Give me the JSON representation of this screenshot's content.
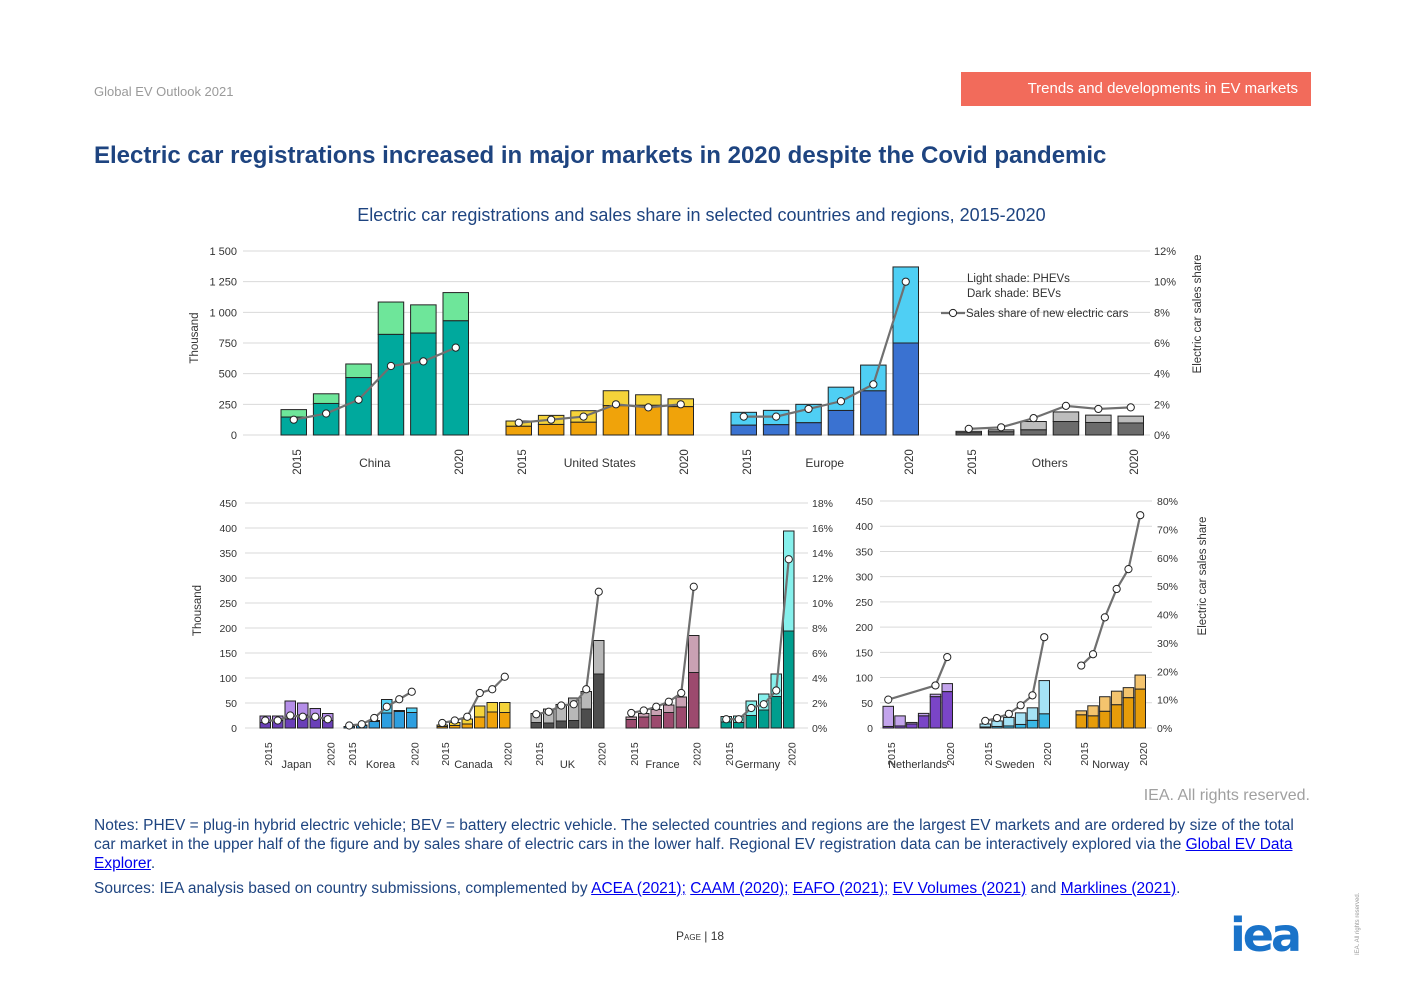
{
  "header": {
    "doc_label": "Global EV Outlook 2021",
    "section_tag": "Trends and developments in EV markets",
    "title": "Electric car registrations increased in major markets in 2020 despite the Covid pandemic"
  },
  "chart_title": "Electric car registrations and sales share in selected countries and regions, 2015-2020",
  "footer": {
    "copyright": "IEA. All rights reserved.",
    "notes_text": "Notes: PHEV = plug-in hybrid electric vehicle; BEV = battery electric vehicle. The selected countries and regions are the largest EV markets and are ordered by size of the total car market in the upper half of the figure and by sales share of electric cars in the lower half. Regional EV registration data can be interactively explored via the ",
    "notes_link": "Global EV Data Explorer",
    "sources_prefix": "Sources: IEA analysis based on country submissions, complemented by ",
    "sources_links": [
      "ACEA (2021);",
      "CAAM (2020);",
      "EAFO (2021);",
      "EV Volumes (2021)",
      "Marklines (2021)"
    ],
    "sources_and": "and",
    "page_label": "Page",
    "page_number": "18",
    "logo": "iea",
    "vertical_rights": "IEA. All rights reserved."
  },
  "chart_data": [
    {
      "type": "bar",
      "stacked": true,
      "panel": "top",
      "ylabel": "Thousand",
      "y2label": "Electric car sales share",
      "ylim": [
        0,
        1500
      ],
      "yticks": [
        "0",
        "250",
        "500",
        "750",
        "1 000",
        "1 250",
        "1 500"
      ],
      "y2lim": [
        0,
        12
      ],
      "y2ticks": [
        "0%",
        "2%",
        "4%",
        "6%",
        "8%",
        "10%",
        "12%"
      ],
      "legend": [
        "Light shade: PHEVs",
        "Dark shade: BEVs",
        "Sales share of new electric cars"
      ],
      "legend_position": "top-right",
      "years": [
        "2015",
        "2016",
        "2017",
        "2018",
        "2019",
        "2020"
      ],
      "year_labels": [
        "2015",
        "2020"
      ],
      "groups": [
        {
          "name": "China",
          "colors": [
            "#00a99d",
            "#6ee69a"
          ],
          "bev": [
            146,
            257,
            468,
            820,
            831,
            931
          ],
          "phev": [
            61,
            79,
            111,
            264,
            230,
            230
          ],
          "share": [
            1.0,
            1.4,
            2.3,
            4.5,
            4.8,
            5.7
          ]
        },
        {
          "name": "United States",
          "colors": [
            "#f0a30a",
            "#f5d33a"
          ],
          "bev": [
            71,
            86,
            104,
            239,
            242,
            231
          ],
          "phev": [
            43,
            74,
            94,
            122,
            86,
            64
          ],
          "share": [
            0.8,
            1.0,
            1.2,
            2.0,
            1.8,
            2.0
          ]
        },
        {
          "name": "Europe",
          "colors": [
            "#3a72d1",
            "#4fcff4"
          ],
          "bev": [
            80,
            84,
            100,
            200,
            360,
            750
          ],
          "phev": [
            105,
            117,
            150,
            190,
            210,
            620
          ],
          "share": [
            1.2,
            1.2,
            1.7,
            2.2,
            3.3,
            10.0
          ]
        },
        {
          "name": "Others",
          "colors": [
            "#6b6b6b",
            "#bdbdbd"
          ],
          "bev": [
            18,
            26,
            42,
            110,
            102,
            98
          ],
          "phev": [
            12,
            16,
            68,
            78,
            60,
            56
          ],
          "share": [
            0.4,
            0.5,
            1.1,
            1.9,
            1.7,
            1.8
          ]
        }
      ]
    },
    {
      "type": "bar",
      "stacked": true,
      "panel": "bottom-left",
      "ylabel": "Thousand",
      "ylim": [
        0,
        450
      ],
      "yticks": [
        "0",
        "50",
        "100",
        "150",
        "200",
        "250",
        "300",
        "350",
        "400",
        "450"
      ],
      "y2lim": [
        0,
        18
      ],
      "y2ticks": [
        "0%",
        "2%",
        "4%",
        "6%",
        "8%",
        "10%",
        "12%",
        "14%",
        "16%",
        "18%"
      ],
      "years": [
        "2015",
        "2016",
        "2017",
        "2018",
        "2019",
        "2020"
      ],
      "year_labels": [
        "2015",
        "2020"
      ],
      "groups": [
        {
          "name": "Japan",
          "colors": [
            "#6a3fb8",
            "#b58ee8"
          ],
          "bev": [
            11,
            15,
            18,
            26,
            21,
            15
          ],
          "phev": [
            13,
            9,
            36,
            24,
            18,
            14
          ],
          "share": [
            0.6,
            0.6,
            1.0,
            0.9,
            0.9,
            0.7
          ]
        },
        {
          "name": "Korea",
          "colors": [
            "#2e9fe0",
            "#55d4f8"
          ],
          "bev": [
            3,
            5,
            13,
            30,
            33,
            31
          ],
          "phev": [
            0,
            1,
            2,
            27,
            2,
            9
          ],
          "share": [
            0.2,
            0.3,
            0.8,
            1.7,
            2.3,
            2.9
          ]
        },
        {
          "name": "Canada",
          "colors": [
            "#f0a30a",
            "#f5d33a"
          ],
          "bev": [
            3,
            5,
            8,
            22,
            32,
            31
          ],
          "phev": [
            3,
            6,
            10,
            22,
            19,
            20
          ],
          "share": [
            0.4,
            0.6,
            0.9,
            2.8,
            3.1,
            4.1
          ]
        },
        {
          "name": "UK",
          "colors": [
            "#4d4d4d",
            "#b8b8b8"
          ],
          "bev": [
            11,
            10,
            14,
            15,
            38,
            108
          ],
          "phev": [
            18,
            28,
            33,
            45,
            35,
            67
          ],
          "share": [
            1.1,
            1.3,
            1.8,
            1.9,
            3.1,
            10.9
          ]
        },
        {
          "name": "France",
          "colors": [
            "#9c4a6e",
            "#c9a1b3"
          ],
          "bev": [
            17,
            22,
            25,
            31,
            42,
            111
          ],
          "phev": [
            5,
            7,
            12,
            15,
            20,
            74
          ],
          "share": [
            1.2,
            1.4,
            1.7,
            2.1,
            2.8,
            11.3
          ]
        },
        {
          "name": "Germany",
          "colors": [
            "#009e8e",
            "#86f0ec"
          ],
          "bev": [
            12,
            11,
            25,
            36,
            63,
            194
          ],
          "phev": [
            11,
            13,
            29,
            32,
            45,
            200
          ],
          "share": [
            0.7,
            0.7,
            1.6,
            1.9,
            3.0,
            13.5
          ]
        }
      ]
    },
    {
      "type": "bar",
      "stacked": true,
      "panel": "bottom-right",
      "y2label": "Electric car sales share",
      "ylim": [
        0,
        450
      ],
      "yticks": [
        "0",
        "50",
        "100",
        "150",
        "200",
        "250",
        "300",
        "350",
        "400",
        "450"
      ],
      "y2lim": [
        0,
        80
      ],
      "y2ticks": [
        "0%",
        "10%",
        "20%",
        "30%",
        "40%",
        "50%",
        "60%",
        "70%",
        "80%"
      ],
      "years": [
        "2015",
        "2016",
        "2017",
        "2018",
        "2019",
        "2020"
      ],
      "year_labels": [
        "2015",
        "2020"
      ],
      "groups": [
        {
          "name": "Netherlands",
          "colors": [
            "#7a45c7",
            "#c3a4ec"
          ],
          "bev": [
            3,
            4,
            8,
            24,
            62,
            72
          ],
          "phev": [
            40,
            20,
            3,
            5,
            5,
            16
          ],
          "share": [
            10,
            null,
            null,
            null,
            15,
            25
          ]
        },
        {
          "name": "Sweden",
          "colors": [
            "#3ab8e6",
            "#a5e2f5"
          ],
          "bev": [
            2,
            3,
            4,
            7,
            15,
            28
          ],
          "phev": [
            6,
            11,
            17,
            23,
            25,
            66
          ],
          "share": [
            2.5,
            3.5,
            5,
            8,
            11.5,
            32
          ]
        },
        {
          "name": "Norway",
          "colors": [
            "#e69c0a",
            "#f4c46e"
          ],
          "bev": [
            26,
            24,
            33,
            46,
            60,
            77
          ],
          "phev": [
            8,
            20,
            29,
            27,
            20,
            28
          ],
          "share": [
            22,
            26,
            39,
            49,
            56,
            75
          ]
        }
      ]
    }
  ]
}
